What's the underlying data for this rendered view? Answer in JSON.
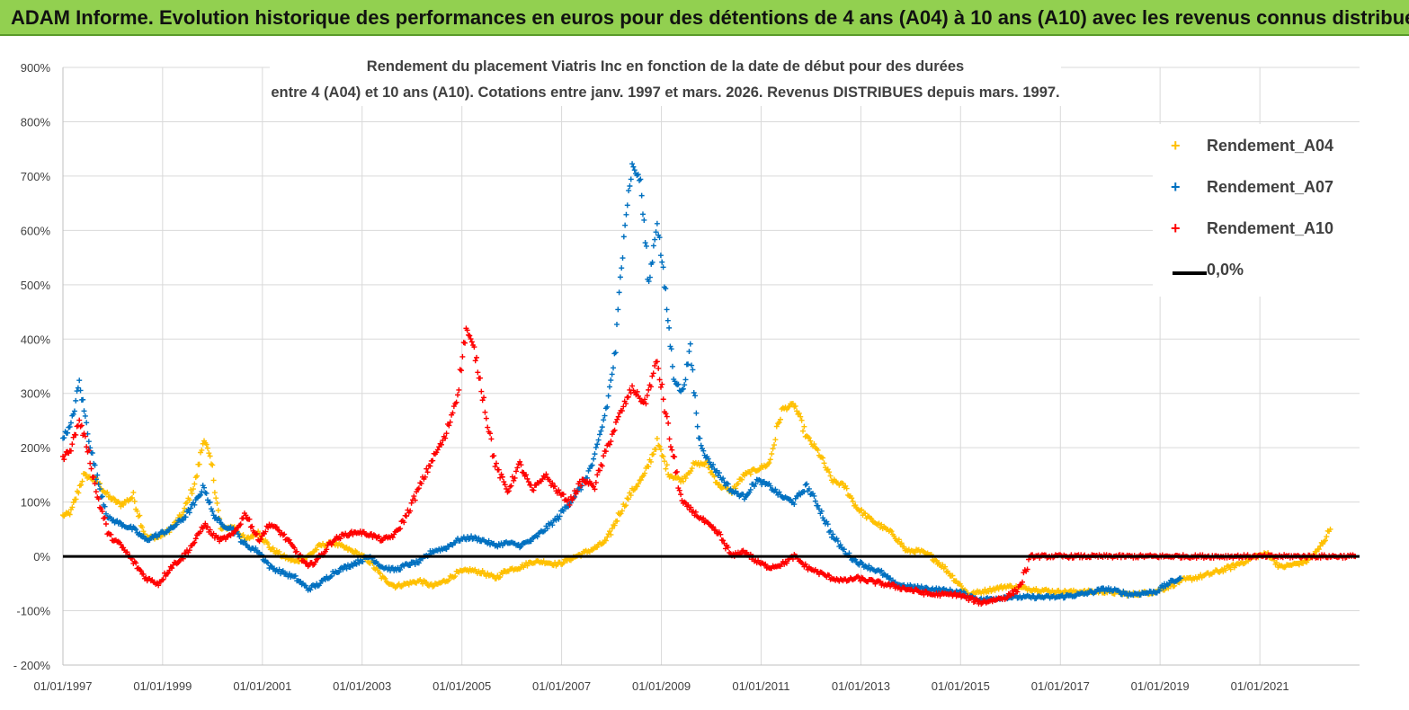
{
  "header": {
    "banner_title": "ADAM Informe. Evolution historique des performances en euros pour des détentions de 4 ans (A04) à 10 ans (A10) avec les revenus connus distribués"
  },
  "chart_data": {
    "type": "scatter",
    "title_line1": "Rendement du placement Viatris Inc en fonction de la date de début pour des durées",
    "title_line2": "entre 4 (A04) et 10 ans (A10). Cotations entre janv. 1997 et mars. 2026. Revenus DISTRIBUES depuis mars. 1997.",
    "x_axis": {
      "type": "date",
      "min": "1997-01-01",
      "max": "2023-01-01",
      "tick_labels": [
        "01/01/1997",
        "01/01/1999",
        "01/01/2001",
        "01/01/2003",
        "01/01/2005",
        "01/01/2007",
        "01/01/2009",
        "01/01/2011",
        "01/01/2013",
        "01/01/2015",
        "01/01/2017",
        "01/01/2019",
        "01/01/2021"
      ]
    },
    "y_axis": {
      "min": -200,
      "max": 900,
      "step": 100,
      "unit": "%",
      "tick_labels": [
        "- 200%",
        "-100%",
        "0%",
        "100%",
        "200%",
        "300%",
        "400%",
        "500%",
        "600%",
        "700%",
        "800%",
        "900%"
      ]
    },
    "grid": true,
    "legend_position": "top-right",
    "series": [
      {
        "name": "Rendement_A04",
        "color": "#ffc000",
        "marker": "+",
        "points": [
          [
            "1997-01-01",
            75
          ],
          [
            "1997-03-01",
            80
          ],
          [
            "1997-06-01",
            150
          ],
          [
            "1997-09-01",
            140
          ],
          [
            "1997-12-01",
            110
          ],
          [
            "1998-03-01",
            95
          ],
          [
            "1998-06-01",
            110
          ],
          [
            "1998-09-01",
            35
          ],
          [
            "1998-12-01",
            35
          ],
          [
            "1999-03-01",
            50
          ],
          [
            "1999-06-01",
            80
          ],
          [
            "1999-09-01",
            140
          ],
          [
            "1999-11-01",
            220
          ],
          [
            "2000-01-01",
            160
          ],
          [
            "2000-03-01",
            50
          ],
          [
            "2000-06-01",
            55
          ],
          [
            "2000-09-01",
            30
          ],
          [
            "2000-12-01",
            45
          ],
          [
            "2001-03-01",
            15
          ],
          [
            "2001-06-01",
            0
          ],
          [
            "2001-09-01",
            -10
          ],
          [
            "2001-12-01",
            0
          ],
          [
            "2002-03-01",
            20
          ],
          [
            "2002-06-01",
            25
          ],
          [
            "2002-09-01",
            15
          ],
          [
            "2002-12-01",
            5
          ],
          [
            "2003-03-01",
            -10
          ],
          [
            "2003-06-01",
            -40
          ],
          [
            "2003-09-01",
            -55
          ],
          [
            "2003-12-01",
            -50
          ],
          [
            "2004-03-01",
            -45
          ],
          [
            "2004-06-01",
            -55
          ],
          [
            "2004-09-01",
            -45
          ],
          [
            "2004-12-01",
            -30
          ],
          [
            "2005-03-01",
            -25
          ],
          [
            "2005-06-01",
            -30
          ],
          [
            "2005-09-01",
            -40
          ],
          [
            "2005-12-01",
            -25
          ],
          [
            "2006-03-01",
            -20
          ],
          [
            "2006-06-01",
            -10
          ],
          [
            "2006-09-01",
            -10
          ],
          [
            "2006-12-01",
            -15
          ],
          [
            "2007-03-01",
            -5
          ],
          [
            "2007-06-01",
            5
          ],
          [
            "2007-09-01",
            15
          ],
          [
            "2007-12-01",
            30
          ],
          [
            "2008-03-01",
            80
          ],
          [
            "2008-06-01",
            120
          ],
          [
            "2008-09-01",
            150
          ],
          [
            "2008-12-01",
            210
          ],
          [
            "2009-03-01",
            150
          ],
          [
            "2009-06-01",
            140
          ],
          [
            "2009-09-01",
            170
          ],
          [
            "2009-12-01",
            170
          ],
          [
            "2010-03-01",
            130
          ],
          [
            "2010-06-01",
            120
          ],
          [
            "2010-09-01",
            150
          ],
          [
            "2010-12-01",
            160
          ],
          [
            "2011-03-01",
            170
          ],
          [
            "2011-06-01",
            270
          ],
          [
            "2011-09-01",
            280
          ],
          [
            "2011-12-01",
            220
          ],
          [
            "2012-03-01",
            190
          ],
          [
            "2012-06-01",
            140
          ],
          [
            "2012-09-01",
            130
          ],
          [
            "2012-12-01",
            90
          ],
          [
            "2013-03-01",
            70
          ],
          [
            "2013-06-01",
            55
          ],
          [
            "2013-09-01",
            40
          ],
          [
            "2013-12-01",
            10
          ],
          [
            "2014-03-01",
            10
          ],
          [
            "2014-06-01",
            0
          ],
          [
            "2014-09-01",
            -20
          ],
          [
            "2014-12-01",
            -45
          ],
          [
            "2015-03-01",
            -70
          ],
          [
            "2015-06-01",
            -65
          ],
          [
            "2015-09-01",
            -60
          ],
          [
            "2015-12-01",
            -55
          ],
          [
            "2016-06-01",
            -60
          ],
          [
            "2016-12-01",
            -65
          ],
          [
            "2017-06-01",
            -65
          ],
          [
            "2017-12-01",
            -65
          ],
          [
            "2018-06-01",
            -70
          ],
          [
            "2018-12-01",
            -65
          ],
          [
            "2019-06-01",
            -45
          ],
          [
            "2019-12-01",
            -35
          ],
          [
            "2020-06-01",
            -20
          ],
          [
            "2020-12-01",
            0
          ],
          [
            "2021-03-01",
            5
          ],
          [
            "2021-06-01",
            -20
          ],
          [
            "2021-09-01",
            -15
          ],
          [
            "2021-12-01",
            -10
          ],
          [
            "2022-03-01",
            10
          ],
          [
            "2022-06-01",
            50
          ]
        ]
      },
      {
        "name": "Rendement_A07",
        "color": "#0070c0",
        "marker": "+",
        "points": [
          [
            "1997-01-01",
            220
          ],
          [
            "1997-03-01",
            240
          ],
          [
            "1997-05-01",
            320
          ],
          [
            "1997-07-01",
            230
          ],
          [
            "1997-09-01",
            150
          ],
          [
            "1997-12-01",
            70
          ],
          [
            "1998-03-01",
            60
          ],
          [
            "1998-06-01",
            50
          ],
          [
            "1998-09-01",
            30
          ],
          [
            "1998-12-01",
            40
          ],
          [
            "1999-03-01",
            50
          ],
          [
            "1999-06-01",
            70
          ],
          [
            "1999-09-01",
            100
          ],
          [
            "1999-11-01",
            130
          ],
          [
            "2000-01-01",
            80
          ],
          [
            "2000-03-01",
            60
          ],
          [
            "2000-06-01",
            50
          ],
          [
            "2000-09-01",
            20
          ],
          [
            "2000-12-01",
            10
          ],
          [
            "2001-03-01",
            -20
          ],
          [
            "2001-06-01",
            -30
          ],
          [
            "2001-09-01",
            -40
          ],
          [
            "2001-12-01",
            -60
          ],
          [
            "2002-03-01",
            -50
          ],
          [
            "2002-06-01",
            -30
          ],
          [
            "2002-09-01",
            -20
          ],
          [
            "2002-12-01",
            -10
          ],
          [
            "2003-03-01",
            0
          ],
          [
            "2003-06-01",
            -20
          ],
          [
            "2003-09-01",
            -25
          ],
          [
            "2003-12-01",
            -15
          ],
          [
            "2004-03-01",
            -10
          ],
          [
            "2004-06-01",
            10
          ],
          [
            "2004-09-01",
            15
          ],
          [
            "2004-12-01",
            30
          ],
          [
            "2005-03-01",
            35
          ],
          [
            "2005-06-01",
            30
          ],
          [
            "2005-09-01",
            20
          ],
          [
            "2005-12-01",
            25
          ],
          [
            "2006-03-01",
            20
          ],
          [
            "2006-06-01",
            30
          ],
          [
            "2006-09-01",
            50
          ],
          [
            "2006-12-01",
            70
          ],
          [
            "2007-03-01",
            100
          ],
          [
            "2007-06-01",
            130
          ],
          [
            "2007-09-01",
            180
          ],
          [
            "2007-12-01",
            280
          ],
          [
            "2008-02-01",
            380
          ],
          [
            "2008-04-01",
            600
          ],
          [
            "2008-06-01",
            720
          ],
          [
            "2008-08-01",
            690
          ],
          [
            "2008-10-01",
            500
          ],
          [
            "2008-12-01",
            620
          ],
          [
            "2009-02-01",
            480
          ],
          [
            "2009-04-01",
            330
          ],
          [
            "2009-06-01",
            300
          ],
          [
            "2009-08-01",
            380
          ],
          [
            "2009-10-01",
            220
          ],
          [
            "2009-12-01",
            180
          ],
          [
            "2010-03-01",
            150
          ],
          [
            "2010-06-01",
            120
          ],
          [
            "2010-09-01",
            110
          ],
          [
            "2010-12-01",
            140
          ],
          [
            "2011-03-01",
            130
          ],
          [
            "2011-06-01",
            110
          ],
          [
            "2011-09-01",
            100
          ],
          [
            "2011-12-01",
            130
          ],
          [
            "2012-03-01",
            90
          ],
          [
            "2012-06-01",
            40
          ],
          [
            "2012-09-01",
            10
          ],
          [
            "2012-12-01",
            -10
          ],
          [
            "2013-03-01",
            -20
          ],
          [
            "2013-06-01",
            -30
          ],
          [
            "2013-09-01",
            -50
          ],
          [
            "2013-12-01",
            -55
          ],
          [
            "2014-06-01",
            -60
          ],
          [
            "2014-12-01",
            -65
          ],
          [
            "2015-06-01",
            -80
          ],
          [
            "2015-12-01",
            -75
          ],
          [
            "2016-06-01",
            -75
          ],
          [
            "2016-12-01",
            -75
          ],
          [
            "2017-06-01",
            -70
          ],
          [
            "2017-12-01",
            -60
          ],
          [
            "2018-06-01",
            -70
          ],
          [
            "2018-12-01",
            -65
          ],
          [
            "2019-03-01",
            -50
          ],
          [
            "2019-06-01",
            -40
          ]
        ]
      },
      {
        "name": "Rendement_A10",
        "color": "#ff0000",
        "marker": "+",
        "points": [
          [
            "1997-01-01",
            180
          ],
          [
            "1997-03-01",
            200
          ],
          [
            "1997-05-01",
            250
          ],
          [
            "1997-07-01",
            200
          ],
          [
            "1997-09-01",
            120
          ],
          [
            "1997-12-01",
            40
          ],
          [
            "1998-03-01",
            20
          ],
          [
            "1998-06-01",
            -10
          ],
          [
            "1998-09-01",
            -40
          ],
          [
            "1998-12-01",
            -50
          ],
          [
            "1999-03-01",
            -20
          ],
          [
            "1999-06-01",
            0
          ],
          [
            "1999-09-01",
            30
          ],
          [
            "1999-11-01",
            60
          ],
          [
            "2000-01-01",
            40
          ],
          [
            "2000-03-01",
            30
          ],
          [
            "2000-06-01",
            40
          ],
          [
            "2000-09-01",
            80
          ],
          [
            "2000-12-01",
            30
          ],
          [
            "2001-03-01",
            60
          ],
          [
            "2001-06-01",
            40
          ],
          [
            "2001-09-01",
            10
          ],
          [
            "2001-12-01",
            -20
          ],
          [
            "2002-03-01",
            0
          ],
          [
            "2002-06-01",
            30
          ],
          [
            "2002-09-01",
            40
          ],
          [
            "2002-12-01",
            45
          ],
          [
            "2003-03-01",
            40
          ],
          [
            "2003-06-01",
            30
          ],
          [
            "2003-09-01",
            40
          ],
          [
            "2003-12-01",
            80
          ],
          [
            "2004-03-01",
            130
          ],
          [
            "2004-06-01",
            180
          ],
          [
            "2004-09-01",
            220
          ],
          [
            "2004-12-01",
            300
          ],
          [
            "2005-02-01",
            420
          ],
          [
            "2005-04-01",
            380
          ],
          [
            "2005-06-01",
            300
          ],
          [
            "2005-09-01",
            170
          ],
          [
            "2005-12-01",
            120
          ],
          [
            "2006-03-01",
            170
          ],
          [
            "2006-06-01",
            120
          ],
          [
            "2006-09-01",
            150
          ],
          [
            "2006-12-01",
            120
          ],
          [
            "2007-03-01",
            100
          ],
          [
            "2007-06-01",
            140
          ],
          [
            "2007-09-01",
            130
          ],
          [
            "2007-12-01",
            200
          ],
          [
            "2008-03-01",
            260
          ],
          [
            "2008-06-01",
            310
          ],
          [
            "2008-09-01",
            280
          ],
          [
            "2008-12-01",
            360
          ],
          [
            "2009-03-01",
            220
          ],
          [
            "2009-06-01",
            100
          ],
          [
            "2009-09-01",
            80
          ],
          [
            "2009-12-01",
            60
          ],
          [
            "2010-03-01",
            40
          ],
          [
            "2010-06-01",
            0
          ],
          [
            "2010-09-01",
            10
          ],
          [
            "2010-12-01",
            -10
          ],
          [
            "2011-03-01",
            -20
          ],
          [
            "2011-06-01",
            -15
          ],
          [
            "2011-09-01",
            0
          ],
          [
            "2011-12-01",
            -20
          ],
          [
            "2012-03-01",
            -30
          ],
          [
            "2012-06-01",
            -40
          ],
          [
            "2012-09-01",
            -45
          ],
          [
            "2012-12-01",
            -40
          ],
          [
            "2013-06-01",
            -50
          ],
          [
            "2013-12-01",
            -60
          ],
          [
            "2014-06-01",
            -70
          ],
          [
            "2014-12-01",
            -70
          ],
          [
            "2015-06-01",
            -85
          ],
          [
            "2015-12-01",
            -75
          ],
          [
            "2016-03-01",
            -60
          ],
          [
            "2016-06-01",
            0
          ],
          [
            "2017-06-01",
            0
          ],
          [
            "2018-06-01",
            0
          ],
          [
            "2019-06-01",
            0
          ],
          [
            "2020-06-01",
            0
          ],
          [
            "2021-06-01",
            0
          ],
          [
            "2022-06-01",
            0
          ],
          [
            "2022-12-01",
            0
          ]
        ]
      }
    ],
    "reference_line": {
      "name": "0,0%",
      "y": 0,
      "color": "#000000"
    }
  }
}
